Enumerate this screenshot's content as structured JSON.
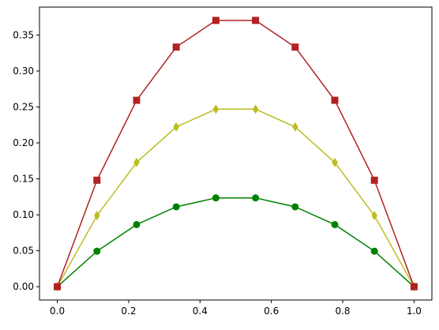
{
  "chart_data": {
    "type": "line",
    "title": "",
    "xlabel": "",
    "ylabel": "",
    "xlim": [
      -0.05,
      1.05
    ],
    "ylim": [
      -0.0185,
      0.3889
    ],
    "grid": false,
    "x": [
      0.0,
      0.1111,
      0.2222,
      0.3333,
      0.4444,
      0.5556,
      0.6667,
      0.7778,
      0.8889,
      1.0
    ],
    "x_ticks": [
      0.0,
      0.2,
      0.4,
      0.6,
      0.8,
      1.0
    ],
    "x_tick_labels": [
      "0.0",
      "0.2",
      "0.4",
      "0.6",
      "0.8",
      "1.0"
    ],
    "y_ticks": [
      0.0,
      0.05,
      0.1,
      0.15,
      0.2,
      0.25,
      0.3,
      0.35
    ],
    "y_tick_labels": [
      "0.00",
      "0.05",
      "0.10",
      "0.15",
      "0.20",
      "0.25",
      "0.30",
      "0.35"
    ],
    "series": [
      {
        "color": "#008000",
        "marker": "circle",
        "values": [
          0.0,
          0.0494,
          0.0864,
          0.1111,
          0.1235,
          0.1235,
          0.1111,
          0.0864,
          0.0494,
          0.0
        ]
      },
      {
        "color": "#bcbd22",
        "marker": "diamond",
        "values": [
          0.0,
          0.0988,
          0.1728,
          0.2222,
          0.2469,
          0.2469,
          0.2222,
          0.1728,
          0.0988,
          0.0
        ]
      },
      {
        "color": "#b22222",
        "marker": "square",
        "values": [
          0.0,
          0.1481,
          0.2593,
          0.3333,
          0.3704,
          0.3704,
          0.3333,
          0.2593,
          0.1481,
          0.0
        ]
      }
    ]
  }
}
